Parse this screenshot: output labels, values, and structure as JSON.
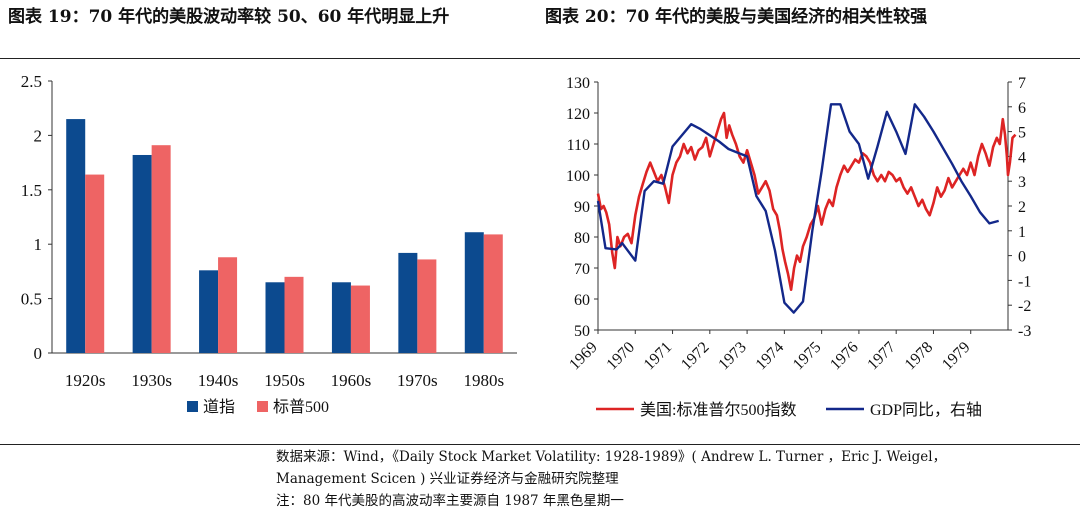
{
  "figures": {
    "left_title": "图表 19：70 年代的美股波动率较 50、60 年代明显上升",
    "right_title": "图表 20：70 年代的美股与美国经济的相关性较强"
  },
  "footer": {
    "source_line1": "数据来源：Wind，《Daily Stock Market Volatility: 1928-1989》( Andrew L. Turner ，Eric J. Weigel，",
    "source_line2": "Management Scicen ) 兴业证券经济与金融研究院整理",
    "note": "注：80 年代美股的高波动率主要源自 1987 年黑色星期一"
  },
  "chart_data": [
    {
      "type": "bar",
      "categories": [
        "1920s",
        "1930s",
        "1940s",
        "1950s",
        "1960s",
        "1970s",
        "1980s"
      ],
      "series": [
        {
          "name": "道指",
          "color": "#0c4a8f",
          "values": [
            2.15,
            1.82,
            0.76,
            0.65,
            0.65,
            0.92,
            1.11
          ]
        },
        {
          "name": "标普500",
          "color": "#ee6464",
          "values": [
            1.64,
            1.91,
            0.88,
            0.7,
            0.62,
            0.86,
            1.09
          ]
        }
      ],
      "yticks": [
        "0",
        "0.5",
        "1",
        "1.5",
        "2",
        "2.5"
      ],
      "ylim": [
        0,
        2.5
      ],
      "legend_position": "bottom"
    },
    {
      "type": "line",
      "xticks": [
        "1969",
        "1970",
        "1971",
        "1972",
        "1973",
        "1974",
        "1975",
        "1976",
        "1977",
        "1978",
        "1979"
      ],
      "xlim": [
        1969.0,
        1980.0
      ],
      "yticks_left": [
        "50",
        "60",
        "70",
        "80",
        "90",
        "100",
        "110",
        "120",
        "130"
      ],
      "ylim_left": [
        50,
        130
      ],
      "yticks_right": [
        "-3",
        "-2",
        "-1",
        "0",
        "1",
        "2",
        "3",
        "4",
        "5",
        "6",
        "7"
      ],
      "ylim_right": [
        -3,
        7
      ],
      "legend_position": "bottom",
      "series": [
        {
          "name": "美国:标准普尔500指数",
          "axis": "left",
          "color": "#dd2424",
          "points": [
            [
              1969.0,
              94
            ],
            [
              1969.08,
              89
            ],
            [
              1969.15,
              90
            ],
            [
              1969.22,
              88
            ],
            [
              1969.3,
              84
            ],
            [
              1969.38,
              75
            ],
            [
              1969.45,
              70
            ],
            [
              1969.52,
              80
            ],
            [
              1969.6,
              77
            ],
            [
              1969.7,
              80
            ],
            [
              1969.8,
              81
            ],
            [
              1969.9,
              78
            ],
            [
              1970.0,
              87
            ],
            [
              1970.1,
              93
            ],
            [
              1970.2,
              97
            ],
            [
              1970.3,
              101
            ],
            [
              1970.4,
              104
            ],
            [
              1970.5,
              101
            ],
            [
              1970.6,
              98
            ],
            [
              1970.7,
              100
            ],
            [
              1970.8,
              96
            ],
            [
              1970.9,
              91
            ],
            [
              1971.0,
              100
            ],
            [
              1971.1,
              104
            ],
            [
              1971.2,
              106
            ],
            [
              1971.3,
              110
            ],
            [
              1971.4,
              107
            ],
            [
              1971.5,
              109
            ],
            [
              1971.6,
              105
            ],
            [
              1971.7,
              108
            ],
            [
              1971.8,
              109
            ],
            [
              1971.9,
              112
            ],
            [
              1972.0,
              106
            ],
            [
              1972.1,
              110
            ],
            [
              1972.2,
              114
            ],
            [
              1972.3,
              118
            ],
            [
              1972.38,
              120
            ],
            [
              1972.45,
              112
            ],
            [
              1972.52,
              116
            ],
            [
              1972.6,
              113
            ],
            [
              1972.7,
              110
            ],
            [
              1972.8,
              106
            ],
            [
              1972.9,
              104
            ],
            [
              1973.0,
              108
            ],
            [
              1973.1,
              104
            ],
            [
              1973.2,
              100
            ],
            [
              1973.3,
              94
            ],
            [
              1973.4,
              96
            ],
            [
              1973.5,
              98
            ],
            [
              1973.6,
              95
            ],
            [
              1973.7,
              89
            ],
            [
              1973.8,
              87
            ],
            [
              1973.88,
              82
            ],
            [
              1973.95,
              76
            ],
            [
              1974.02,
              72
            ],
            [
              1974.1,
              68
            ],
            [
              1974.18,
              63
            ],
            [
              1974.26,
              70
            ],
            [
              1974.34,
              74
            ],
            [
              1974.42,
              72
            ],
            [
              1974.5,
              77
            ],
            [
              1974.6,
              80
            ],
            [
              1974.7,
              84
            ],
            [
              1974.8,
              86
            ],
            [
              1974.9,
              90
            ],
            [
              1975.0,
              84
            ],
            [
              1975.1,
              89
            ],
            [
              1975.2,
              92
            ],
            [
              1975.3,
              90
            ],
            [
              1975.4,
              96
            ],
            [
              1975.5,
              100
            ],
            [
              1975.6,
              103
            ],
            [
              1975.7,
              101
            ],
            [
              1975.8,
              103
            ],
            [
              1975.9,
              105
            ],
            [
              1976.0,
              104
            ],
            [
              1976.1,
              107
            ],
            [
              1976.2,
              106
            ],
            [
              1976.3,
              104
            ],
            [
              1976.4,
              100
            ],
            [
              1976.5,
              98
            ],
            [
              1976.6,
              100
            ],
            [
              1976.7,
              98
            ],
            [
              1976.8,
              101
            ],
            [
              1976.9,
              100
            ],
            [
              1977.0,
              98
            ],
            [
              1977.1,
              99
            ],
            [
              1977.2,
              96
            ],
            [
              1977.3,
              94
            ],
            [
              1977.4,
              96
            ],
            [
              1977.5,
              93
            ],
            [
              1977.6,
              90
            ],
            [
              1977.7,
              92
            ],
            [
              1977.8,
              89
            ],
            [
              1977.9,
              87
            ],
            [
              1978.0,
              91
            ],
            [
              1978.1,
              96
            ],
            [
              1978.2,
              93
            ],
            [
              1978.3,
              95
            ],
            [
              1978.4,
              99
            ],
            [
              1978.5,
              96
            ],
            [
              1978.6,
              98
            ],
            [
              1978.7,
              100
            ],
            [
              1978.8,
              102
            ],
            [
              1978.9,
              100
            ],
            [
              1979.0,
              104
            ],
            [
              1979.1,
              100
            ],
            [
              1979.2,
              106
            ],
            [
              1979.3,
              110
            ],
            [
              1979.4,
              107
            ],
            [
              1979.5,
              103
            ],
            [
              1979.6,
              109
            ],
            [
              1979.7,
              112
            ],
            [
              1979.78,
              110
            ],
            [
              1979.86,
              118
            ],
            [
              1979.92,
              113
            ],
            [
              1979.97,
              106
            ],
            [
              1980.0,
              100
            ],
            [
              1980.05,
              104
            ],
            [
              1980.12,
              112
            ],
            [
              1980.2,
              113
            ]
          ]
        },
        {
          "name": "GDP同比，右轴",
          "axis": "right",
          "color": "#13288a",
          "points": [
            [
              1969.0,
              2.2
            ],
            [
              1969.2,
              0.3
            ],
            [
              1969.5,
              0.25
            ],
            [
              1969.65,
              0.5
            ],
            [
              1970.0,
              -0.2
            ],
            [
              1970.25,
              2.6
            ],
            [
              1970.5,
              3.0
            ],
            [
              1970.75,
              2.9
            ],
            [
              1971.0,
              4.4
            ],
            [
              1971.5,
              5.3
            ],
            [
              1971.75,
              5.1
            ],
            [
              1972.0,
              4.85
            ],
            [
              1972.25,
              4.6
            ],
            [
              1972.5,
              4.3
            ],
            [
              1972.75,
              4.15
            ],
            [
              1973.0,
              4.0
            ],
            [
              1973.25,
              2.4
            ],
            [
              1973.5,
              1.8
            ],
            [
              1973.75,
              0.2
            ],
            [
              1974.0,
              -1.9
            ],
            [
              1974.25,
              -2.3
            ],
            [
              1974.5,
              -1.85
            ],
            [
              1974.75,
              1.0
            ],
            [
              1975.0,
              3.4
            ],
            [
              1975.25,
              6.1
            ],
            [
              1975.5,
              6.1
            ],
            [
              1975.75,
              5.0
            ],
            [
              1976.0,
              4.5
            ],
            [
              1976.25,
              3.1
            ],
            [
              1976.5,
              4.4
            ],
            [
              1976.75,
              5.8
            ],
            [
              1977.0,
              5.0
            ],
            [
              1977.25,
              4.1
            ],
            [
              1977.5,
              6.1
            ],
            [
              1977.75,
              5.6
            ],
            [
              1978.0,
              5.0
            ],
            [
              1978.5,
              3.7
            ],
            [
              1978.75,
              3.0
            ],
            [
              1979.0,
              2.4
            ],
            [
              1979.25,
              1.75
            ],
            [
              1979.5,
              1.3
            ],
            [
              1979.75,
              1.4
            ]
          ]
        }
      ]
    }
  ]
}
